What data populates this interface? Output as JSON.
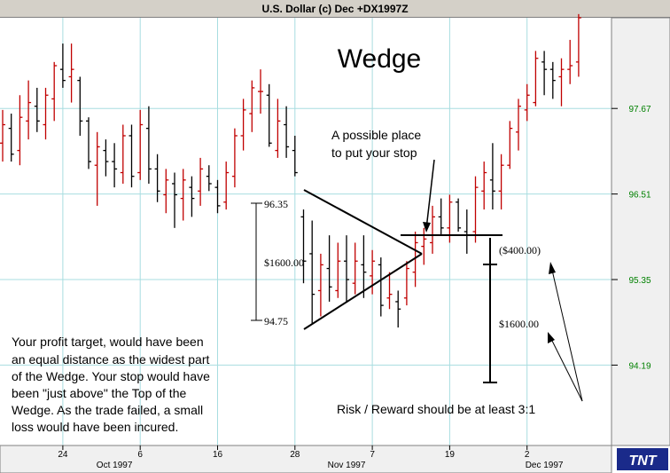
{
  "window": {
    "title": "U.S. Dollar (c) Dec +DX1997Z"
  },
  "brand": {
    "logo_text": "TNT"
  },
  "colors": {
    "up": "#c00000",
    "down": "#000000",
    "grid": "#a8dde0",
    "price_label": "#008000",
    "axis_bg": "#f0f0f0"
  },
  "chart_data": {
    "type": "ohlc-bar",
    "title": "U.S. Dollar (c) Dec +DX1997Z",
    "pattern_label": "Wedge",
    "yticks": [
      94.19,
      95.35,
      96.51,
      97.67
    ],
    "ylim": [
      93.1,
      98.9
    ],
    "x_ticks": [
      {
        "label": "24",
        "index": 7
      },
      {
        "label": "6",
        "index": 16
      },
      {
        "label": "16",
        "index": 25
      },
      {
        "label": "28",
        "index": 34
      },
      {
        "label": "7",
        "index": 43
      },
      {
        "label": "19",
        "index": 52
      },
      {
        "label": "2",
        "index": 61
      }
    ],
    "x_months": [
      {
        "label": "Oct 1997",
        "index": 13
      },
      {
        "label": "Nov 1997",
        "index": 40
      },
      {
        "label": "Dec 1997",
        "index": 63
      }
    ],
    "bars": [
      {
        "o": 97.2,
        "h": 97.65,
        "l": 96.95,
        "c": 97.45
      },
      {
        "o": 97.4,
        "h": 97.6,
        "l": 96.95,
        "c": 97.05
      },
      {
        "o": 97.1,
        "h": 97.85,
        "l": 96.9,
        "c": 97.55
      },
      {
        "o": 97.5,
        "h": 98.05,
        "l": 97.25,
        "c": 97.75
      },
      {
        "o": 97.7,
        "h": 97.95,
        "l": 97.35,
        "c": 97.5
      },
      {
        "o": 97.45,
        "h": 97.95,
        "l": 97.25,
        "c": 97.85
      },
      {
        "o": 97.8,
        "h": 98.3,
        "l": 97.5,
        "c": 98.25
      },
      {
        "o": 98.2,
        "h": 98.55,
        "l": 97.95,
        "c": 98.05
      },
      {
        "o": 98.1,
        "h": 98.55,
        "l": 97.75,
        "c": 98.2
      },
      {
        "o": 98.05,
        "h": 98.1,
        "l": 97.3,
        "c": 97.5
      },
      {
        "o": 97.5,
        "h": 97.55,
        "l": 96.85,
        "c": 96.95
      },
      {
        "o": 96.9,
        "h": 97.35,
        "l": 96.35,
        "c": 97.15
      },
      {
        "o": 97.1,
        "h": 97.25,
        "l": 96.75,
        "c": 96.95
      },
      {
        "o": 96.95,
        "h": 97.2,
        "l": 96.6,
        "c": 96.85
      },
      {
        "o": 96.8,
        "h": 97.45,
        "l": 96.65,
        "c": 97.3
      },
      {
        "o": 97.3,
        "h": 97.45,
        "l": 96.6,
        "c": 96.75
      },
      {
        "o": 96.8,
        "h": 97.65,
        "l": 96.7,
        "c": 97.45
      },
      {
        "o": 97.4,
        "h": 97.7,
        "l": 96.65,
        "c": 96.85
      },
      {
        "o": 96.85,
        "h": 97.05,
        "l": 96.4,
        "c": 96.55
      },
      {
        "o": 96.5,
        "h": 96.85,
        "l": 96.25,
        "c": 96.7
      },
      {
        "o": 96.65,
        "h": 96.8,
        "l": 96.05,
        "c": 96.5
      },
      {
        "o": 96.45,
        "h": 96.85,
        "l": 96.15,
        "c": 96.7
      },
      {
        "o": 96.6,
        "h": 96.75,
        "l": 96.2,
        "c": 96.45
      },
      {
        "o": 96.55,
        "h": 97.0,
        "l": 96.35,
        "c": 96.85
      },
      {
        "o": 96.75,
        "h": 96.9,
        "l": 96.55,
        "c": 96.65
      },
      {
        "o": 96.6,
        "h": 96.7,
        "l": 96.25,
        "c": 96.35
      },
      {
        "o": 96.4,
        "h": 96.95,
        "l": 96.3,
        "c": 96.8
      },
      {
        "o": 96.75,
        "h": 97.4,
        "l": 96.6,
        "c": 97.3
      },
      {
        "o": 97.3,
        "h": 97.8,
        "l": 97.1,
        "c": 97.65
      },
      {
        "o": 97.6,
        "h": 98.05,
        "l": 97.35,
        "c": 97.95
      },
      {
        "o": 97.9,
        "h": 98.2,
        "l": 97.6,
        "c": 97.9
      },
      {
        "o": 97.85,
        "h": 98.0,
        "l": 97.15,
        "c": 97.2
      },
      {
        "o": 97.1,
        "h": 97.8,
        "l": 97.0,
        "c": 97.5
      },
      {
        "o": 97.45,
        "h": 97.7,
        "l": 97.0,
        "c": 97.15
      },
      {
        "o": 97.1,
        "h": 97.3,
        "l": 96.75,
        "c": 96.8
      },
      {
        "o": 96.2,
        "h": 96.3,
        "l": 95.3,
        "c": 95.6
      },
      {
        "o": 95.7,
        "h": 96.15,
        "l": 94.75,
        "c": 95.15
      },
      {
        "o": 95.2,
        "h": 95.7,
        "l": 94.85,
        "c": 95.55
      },
      {
        "o": 95.5,
        "h": 95.95,
        "l": 95.05,
        "c": 95.25
      },
      {
        "o": 95.2,
        "h": 95.85,
        "l": 95.1,
        "c": 95.6
      },
      {
        "o": 95.6,
        "h": 95.95,
        "l": 95.05,
        "c": 95.35
      },
      {
        "o": 95.3,
        "h": 95.85,
        "l": 95.15,
        "c": 95.6
      },
      {
        "o": 95.55,
        "h": 95.95,
        "l": 95.1,
        "c": 95.45
      },
      {
        "o": 95.4,
        "h": 95.75,
        "l": 95.15,
        "c": 95.6
      },
      {
        "o": 95.55,
        "h": 95.65,
        "l": 94.85,
        "c": 95.0
      },
      {
        "o": 95.1,
        "h": 95.45,
        "l": 94.95,
        "c": 95.15
      },
      {
        "o": 95.05,
        "h": 95.2,
        "l": 94.7,
        "c": 94.95
      },
      {
        "o": 95.1,
        "h": 95.6,
        "l": 95.0,
        "c": 95.5
      },
      {
        "o": 95.45,
        "h": 96.0,
        "l": 95.25,
        "c": 95.85
      },
      {
        "o": 95.8,
        "h": 96.05,
        "l": 95.55,
        "c": 95.9
      },
      {
        "o": 95.85,
        "h": 96.35,
        "l": 95.7,
        "c": 96.2
      },
      {
        "o": 96.2,
        "h": 96.45,
        "l": 95.95,
        "c": 96.05
      },
      {
        "o": 96.05,
        "h": 96.5,
        "l": 95.85,
        "c": 96.4
      },
      {
        "o": 96.4,
        "h": 96.45,
        "l": 96.0,
        "c": 96.05
      },
      {
        "o": 96.0,
        "h": 96.3,
        "l": 95.7,
        "c": 95.95
      },
      {
        "o": 96.0,
        "h": 96.75,
        "l": 95.85,
        "c": 96.6
      },
      {
        "o": 96.55,
        "h": 96.95,
        "l": 96.3,
        "c": 96.8
      },
      {
        "o": 96.7,
        "h": 97.2,
        "l": 96.3,
        "c": 96.55
      },
      {
        "o": 96.55,
        "h": 97.05,
        "l": 96.3,
        "c": 96.9
      },
      {
        "o": 96.9,
        "h": 97.5,
        "l": 96.85,
        "c": 97.4
      },
      {
        "o": 97.35,
        "h": 97.8,
        "l": 97.1,
        "c": 97.7
      },
      {
        "o": 97.65,
        "h": 98.0,
        "l": 97.5,
        "c": 97.85
      },
      {
        "o": 97.75,
        "h": 98.45,
        "l": 97.7,
        "c": 98.35
      },
      {
        "o": 98.3,
        "h": 98.45,
        "l": 97.85,
        "c": 98.2
      },
      {
        "o": 98.2,
        "h": 98.3,
        "l": 97.8,
        "c": 98.05
      },
      {
        "o": 98.1,
        "h": 98.35,
        "l": 97.7,
        "c": 98.2
      },
      {
        "o": 98.2,
        "h": 98.6,
        "l": 98.0,
        "c": 98.25
      },
      {
        "o": 98.3,
        "h": 98.95,
        "l": 98.1,
        "c": 98.9
      }
    ],
    "annotations": {
      "stop_text": [
        "A possible place",
        "to put your stop"
      ],
      "range_top": "96.35",
      "range_mid": "$1600.00",
      "range_bottom": "94.75",
      "risk_label": "($400.00)",
      "reward_label": "$1600.00",
      "note": [
        "Your profit target, would have been",
        "an equal distance as the widest part",
        "of the Wedge. Your stop would have",
        "been \"just above\" the Top of the",
        "Wedge. As the trade failed, a small",
        "loss would have been incured."
      ],
      "ratio_text": "Risk / Reward should be at least 3:1"
    }
  }
}
